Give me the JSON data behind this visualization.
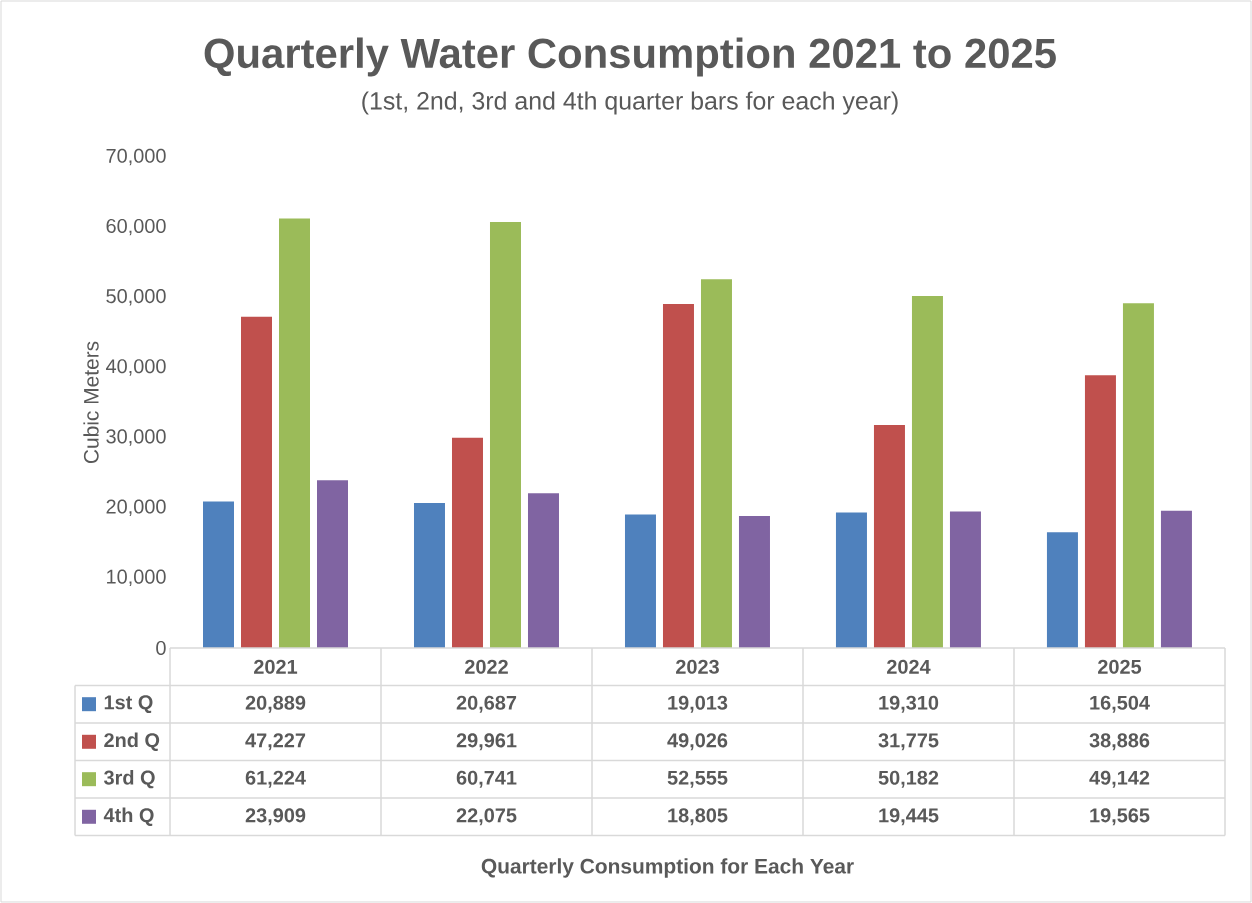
{
  "chart_data": {
    "type": "bar",
    "title": "Quarterly Water  Consumption 2021 to 2025",
    "subtitle": "(1st, 2nd, 3rd and 4th quarter bars for each year)",
    "annotations": [
      "Quarterly Consumption for Each Year"
    ],
    "ylabel": "Cubic Meters",
    "categories": [
      "2021",
      "2022",
      "2023",
      "2024",
      "2025"
    ],
    "series": [
      {
        "name": "1st Q",
        "color": "#4f81bd",
        "values": [
          20889,
          20687,
          19013,
          19310,
          16504
        ],
        "value_labels": [
          "20,889",
          "20,687",
          "19,013",
          "19,310",
          "16,504"
        ]
      },
      {
        "name": "2nd Q",
        "color": "#c0504d",
        "values": [
          47227,
          29961,
          49026,
          31775,
          38886
        ],
        "value_labels": [
          "47,227",
          "29,961",
          "49,026",
          "31,775",
          "38,886"
        ]
      },
      {
        "name": "3rd Q",
        "color": "#9bbb59",
        "values": [
          61224,
          60741,
          52555,
          50182,
          49142
        ],
        "value_labels": [
          "61,224",
          "60,741",
          "52,555",
          "50,182",
          "49,142"
        ]
      },
      {
        "name": "4th Q",
        "color": "#8064a2",
        "values": [
          23909,
          22075,
          18805,
          19445,
          19565
        ],
        "value_labels": [
          "23,909",
          "22,075",
          "18,805",
          "19,445",
          "19,565"
        ]
      }
    ],
    "ylim": [
      0,
      70000
    ],
    "yticks": [
      0,
      {
        "value": 10000,
        "label": "10,000"
      },
      {
        "value": 20000,
        "label": "20,000"
      },
      {
        "value": 30000,
        "label": "30,000"
      },
      {
        "value": 40000,
        "label": "40,000"
      },
      {
        "value": 50000,
        "label": "50,000"
      },
      {
        "value": 60000,
        "label": "60,000"
      },
      {
        "value": 70000,
        "label": "70,000"
      }
    ],
    "legend": "bottom",
    "grid": false
  }
}
